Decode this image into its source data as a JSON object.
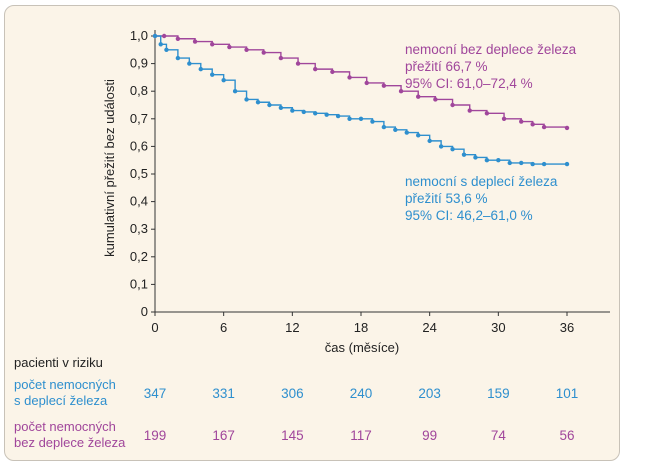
{
  "chart_data": {
    "type": "line",
    "ylabel": "kumulativní přežití bez události",
    "xlabel": "čas (měsíce)",
    "xlim": [
      0,
      38
    ],
    "ylim": [
      0,
      1.0
    ],
    "x_ticks": [
      "0",
      "6",
      "12",
      "18",
      "24",
      "30",
      "36"
    ],
    "y_ticks": [
      "0",
      "0,1",
      "0,2",
      "0,3",
      "0,4",
      "0,5",
      "0,6",
      "0,7",
      "0,8",
      "0,9",
      "1,0"
    ],
    "series": [
      {
        "name": "nemocní bez deplece železa",
        "color": "#a0469b",
        "annotation": [
          "nemocní bez deplece železa",
          "přežití 66,7 %",
          "95% CI: 61,0–72,4 %"
        ],
        "x": [
          0,
          0.8,
          2,
          3.5,
          5,
          6.5,
          8,
          9.5,
          11,
          12.5,
          14,
          15.5,
          17,
          18.5,
          20,
          21.5,
          23,
          24.5,
          26,
          27.5,
          29,
          30.5,
          32,
          33,
          34,
          36
        ],
        "y": [
          1.0,
          1.0,
          0.99,
          0.98,
          0.97,
          0.96,
          0.95,
          0.94,
          0.92,
          0.9,
          0.88,
          0.87,
          0.85,
          0.83,
          0.82,
          0.8,
          0.78,
          0.77,
          0.75,
          0.73,
          0.72,
          0.7,
          0.69,
          0.68,
          0.67,
          0.667
        ]
      },
      {
        "name": "nemocní s deplecí železa",
        "color": "#2e8fce",
        "annotation": [
          "nemocní s deplecí železa",
          "přežití 53,6 %",
          "95% CI: 46,2–61,0 %"
        ],
        "x": [
          0,
          0.5,
          1,
          2,
          3,
          4,
          5,
          6,
          7,
          8,
          9,
          10,
          11,
          12,
          13,
          14,
          15,
          16,
          17,
          18,
          19,
          20,
          21,
          22,
          23,
          24,
          25,
          26,
          27,
          28,
          29,
          30,
          31,
          32,
          33,
          34,
          36
        ],
        "y": [
          1.0,
          0.97,
          0.95,
          0.92,
          0.9,
          0.88,
          0.86,
          0.84,
          0.8,
          0.77,
          0.76,
          0.75,
          0.74,
          0.73,
          0.725,
          0.72,
          0.715,
          0.71,
          0.7,
          0.7,
          0.69,
          0.67,
          0.66,
          0.65,
          0.64,
          0.62,
          0.6,
          0.59,
          0.57,
          0.56,
          0.55,
          0.55,
          0.54,
          0.54,
          0.536,
          0.536,
          0.536
        ]
      }
    ]
  },
  "risk_table": {
    "title": "pacienti v riziku",
    "rows": [
      {
        "label": [
          "počet nemocných",
          "s deplecí železa"
        ],
        "color": "#2e8fce",
        "values": [
          "347",
          "331",
          "306",
          "240",
          "203",
          "159",
          "101"
        ]
      },
      {
        "label": [
          "počet nemocných",
          "bez deplece železa"
        ],
        "color": "#a0469b",
        "values": [
          "199",
          "167",
          "145",
          "117",
          "99",
          "74",
          "56"
        ]
      }
    ]
  }
}
